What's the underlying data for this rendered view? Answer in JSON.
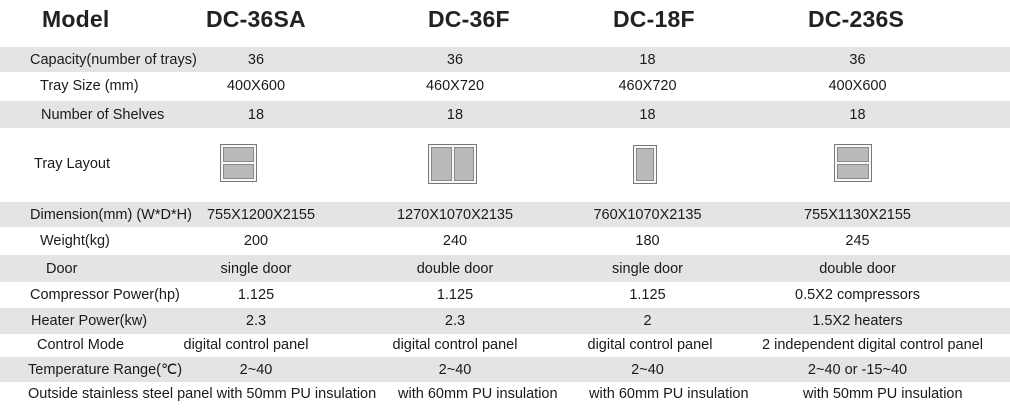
{
  "header": {
    "model_label": "Model",
    "models": [
      "DC-36SA",
      "DC-36F",
      "DC-18F",
      "DC-236S"
    ]
  },
  "rows": [
    {
      "label": "Capacity(number of trays)",
      "values": [
        "36",
        "36",
        "18",
        "36"
      ]
    },
    {
      "label": "Tray Size (mm)",
      "values": [
        "400X600",
        "460X720",
        "460X720",
        "400X600"
      ]
    },
    {
      "label": "Number of Shelves",
      "values": [
        "18",
        "18",
        "18",
        "18"
      ]
    },
    {
      "label": "Tray Layout",
      "values": [
        "",
        "",
        "",
        ""
      ]
    },
    {
      "label": "Dimension(mm) (W*D*H)",
      "values": [
        "755X1200X2155",
        "1270X1070X2135",
        "760X1070X2135",
        "755X1130X2155"
      ]
    },
    {
      "label": "Weight(kg)",
      "values": [
        "200",
        "240",
        "180",
        "245"
      ]
    },
    {
      "label": "Door",
      "values": [
        "single door",
        "double door",
        "single door",
        "double door"
      ]
    },
    {
      "label": "Compressor Power(hp)",
      "values": [
        "1.125",
        "1.125",
        "1.125",
        "0.5X2 compressors"
      ]
    },
    {
      "label": "Heater Power(kw)",
      "values": [
        "2.3",
        "2.3",
        "2",
        "1.5X2 heaters"
      ]
    },
    {
      "label": "Control Mode",
      "values": [
        "digital control panel",
        "digital control panel",
        "digital control panel",
        "2 independent digital control panel"
      ]
    },
    {
      "label": "Temperature Range(℃)",
      "values": [
        "2~40",
        "2~40",
        "2~40",
        "2~40 or -15~40"
      ]
    },
    {
      "label": "Outside stainless steel panel with 50mm PU insulation",
      "values": [
        "",
        "with 60mm PU insulation",
        "with 60mm PU insulation",
        "with 50mm PU insulation"
      ]
    }
  ],
  "tray_layout_icons": [
    "two-trays-stacked-icon",
    "two-trays-side-by-side-icon",
    "single-tray-icon",
    "two-trays-stacked-icon"
  ]
}
